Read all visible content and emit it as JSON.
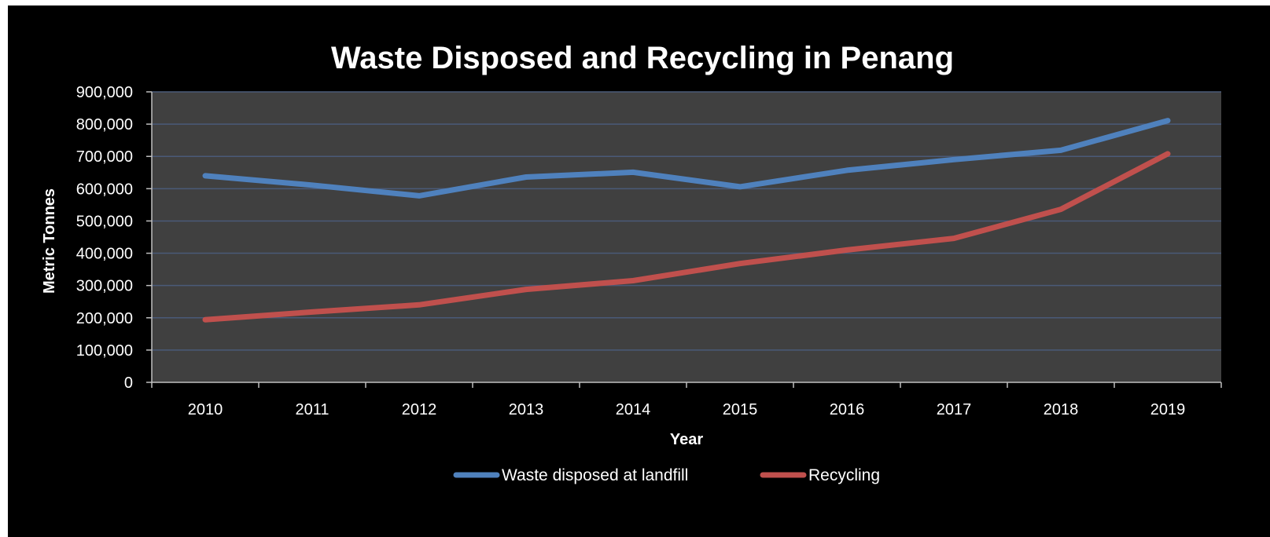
{
  "chart_data": {
    "type": "line",
    "title": "Waste Disposed and Recycling in Penang",
    "xlabel": "Year",
    "ylabel": "Metric Tonnes",
    "categories": [
      "2010",
      "2011",
      "2012",
      "2013",
      "2014",
      "2015",
      "2016",
      "2017",
      "2018",
      "2019"
    ],
    "ylim": [
      0,
      900000
    ],
    "yticks": [
      0,
      100000,
      200000,
      300000,
      400000,
      500000,
      600000,
      700000,
      800000,
      900000
    ],
    "ytick_labels": [
      "0",
      "100,000",
      "200,000",
      "300,000",
      "400,000",
      "500,000",
      "600,000",
      "700,000",
      "800,000",
      "900,000"
    ],
    "grid": true,
    "legend_position": "bottom",
    "series": [
      {
        "name": "Waste disposed at landfill",
        "color": "#4f81bd",
        "values": [
          640000,
          611000,
          578000,
          636000,
          651000,
          606000,
          657000,
          690000,
          719000,
          811000
        ]
      },
      {
        "name": "Recycling",
        "color": "#c0504d",
        "values": [
          194000,
          218000,
          240000,
          288000,
          315000,
          368000,
          410000,
          446000,
          536000,
          708000
        ]
      }
    ],
    "colors": {
      "background": "#000000",
      "plot_area": "#404040",
      "gridline": "#4a5a78",
      "text": "#ffffff"
    }
  }
}
